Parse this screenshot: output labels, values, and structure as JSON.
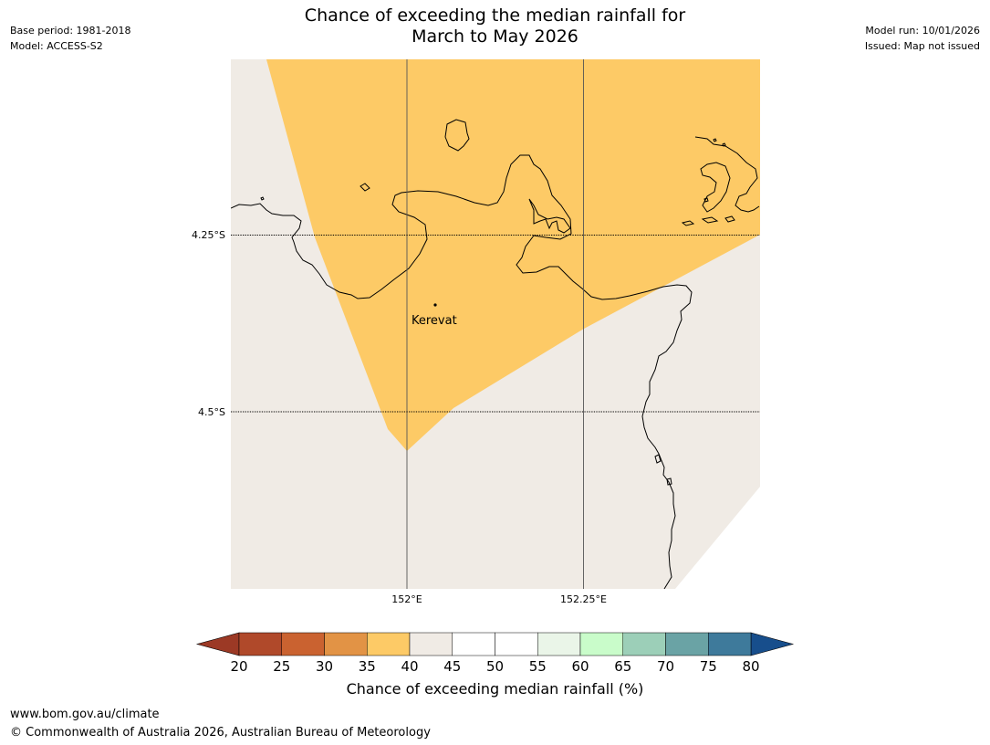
{
  "header": {
    "title_line1": "Chance of exceeding the median rainfall for",
    "title_line2": "March to May 2026",
    "base_period": "Base period: 1981-2018",
    "model": "Model: ACCESS-S2",
    "model_run": "Model run: 10/01/2026",
    "issued": "Issued: Map not issued"
  },
  "map": {
    "lat_labels": [
      "4.25°S",
      "4.5°S"
    ],
    "lon_labels": [
      "152°E",
      "152.25°E"
    ],
    "place": "Kerevat",
    "colors": {
      "land_neutral": "#f0ebe5",
      "category_35_40": "#fdca66",
      "coastline": "#000000",
      "gridline": "#555555"
    }
  },
  "colorbar": {
    "ticks": [
      "20",
      "25",
      "30",
      "35",
      "40",
      "45",
      "50",
      "55",
      "60",
      "65",
      "70",
      "75",
      "80"
    ],
    "colors": [
      "#b0492a",
      "#ca6230",
      "#e29345",
      "#fdca66",
      "#f0ebe5",
      "#ffffff",
      "#ffffff",
      "#eaf5e8",
      "#c9fcca",
      "#9ccfb8",
      "#6aa3a5",
      "#3e7a9b"
    ],
    "low_color": "#9c3925",
    "high_color": "#174e8c",
    "title": "Chance of exceeding median rainfall (%)"
  },
  "footer": {
    "url": "www.bom.gov.au/climate",
    "copyright": "© Commonwealth of Australia 2026, Australian Bureau of Meteorology"
  }
}
